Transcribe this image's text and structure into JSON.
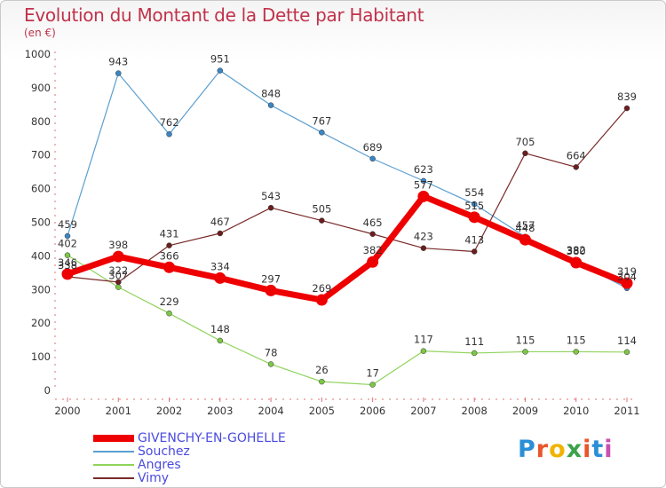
{
  "header": {
    "title": "Evolution du Montant de la Dette par Habitant",
    "subtitle": "(en €)"
  },
  "logo": {
    "text": "Proxiti",
    "colors": [
      "#2a8fd6",
      "#e8562a",
      "#f0b400",
      "#3aa34a",
      "#e8562a",
      "#2a8fd6",
      "#c94fb0"
    ]
  },
  "chart_data": {
    "type": "line",
    "title": "Evolution du Montant de la Dette par Habitant",
    "subtitle": "(en €)",
    "xlabel": "",
    "ylabel": "",
    "categories": [
      "2000",
      "2001",
      "2002",
      "2003",
      "2004",
      "2005",
      "2006",
      "2007",
      "2008",
      "2009",
      "2010",
      "2011"
    ],
    "ylim": [
      0,
      1000
    ],
    "yticks": [
      "0",
      "100",
      "200",
      "300",
      "400",
      "500",
      "600",
      "700",
      "800",
      "900",
      "1000"
    ],
    "grid": false,
    "legend_position": "bottom-left",
    "series": [
      {
        "name": "Souchez",
        "color": "#5b9fd0",
        "marker": "#3a86c4",
        "emphasis": false,
        "values": [
          459,
          943,
          762,
          951,
          848,
          767,
          689,
          623,
          554,
          457,
          382,
          304
        ],
        "labels": [
          "459",
          "943",
          "762",
          "951",
          "848",
          "767",
          "689",
          "623",
          "554",
          "457",
          "382",
          "304"
        ]
      },
      {
        "name": "Angres",
        "color": "#8fd35a",
        "marker": "#7cc646",
        "emphasis": false,
        "values": [
          402,
          307,
          229,
          148,
          78,
          26,
          17,
          117,
          111,
          115,
          115,
          114
        ],
        "labels": [
          "402",
          "307",
          "229",
          "148",
          "78",
          "26",
          "17",
          "117",
          "111",
          "115",
          "115",
          "114"
        ]
      },
      {
        "name": "Vimy",
        "color": "#7a2a2a",
        "marker": "#6b1e1e",
        "emphasis": false,
        "values": [
          338,
          322,
          431,
          467,
          543,
          505,
          465,
          423,
          413,
          705,
          664,
          839
        ],
        "labels": [
          "338",
          "322",
          "431",
          "467",
          "543",
          "505",
          "465",
          "423",
          "413",
          "705",
          "664",
          "839"
        ]
      },
      {
        "name": "GIVENCHY-EN-GOHELLE",
        "color": "#ee0000",
        "marker": "#ee0000",
        "emphasis": true,
        "values": [
          346,
          398,
          366,
          334,
          297,
          269,
          382,
          577,
          515,
          448,
          380,
          319
        ],
        "labels": [
          "346",
          "398",
          "366",
          "334",
          "297",
          "269",
          "382",
          "577",
          "515",
          "448",
          "380",
          "319"
        ]
      }
    ],
    "legend": [
      {
        "name": "GIVENCHY-EN-GOHELLE",
        "color": "#ee0000",
        "text_color": "#4a4adf",
        "thick": true
      },
      {
        "name": "Souchez",
        "color": "#5b9fd0",
        "text_color": "#4a4adf",
        "thick": false
      },
      {
        "name": "Angres",
        "color": "#8fd35a",
        "text_color": "#4a4adf",
        "thick": false
      },
      {
        "name": "Vimy",
        "color": "#7a2a2a",
        "text_color": "#4a4adf",
        "thick": false
      }
    ]
  }
}
